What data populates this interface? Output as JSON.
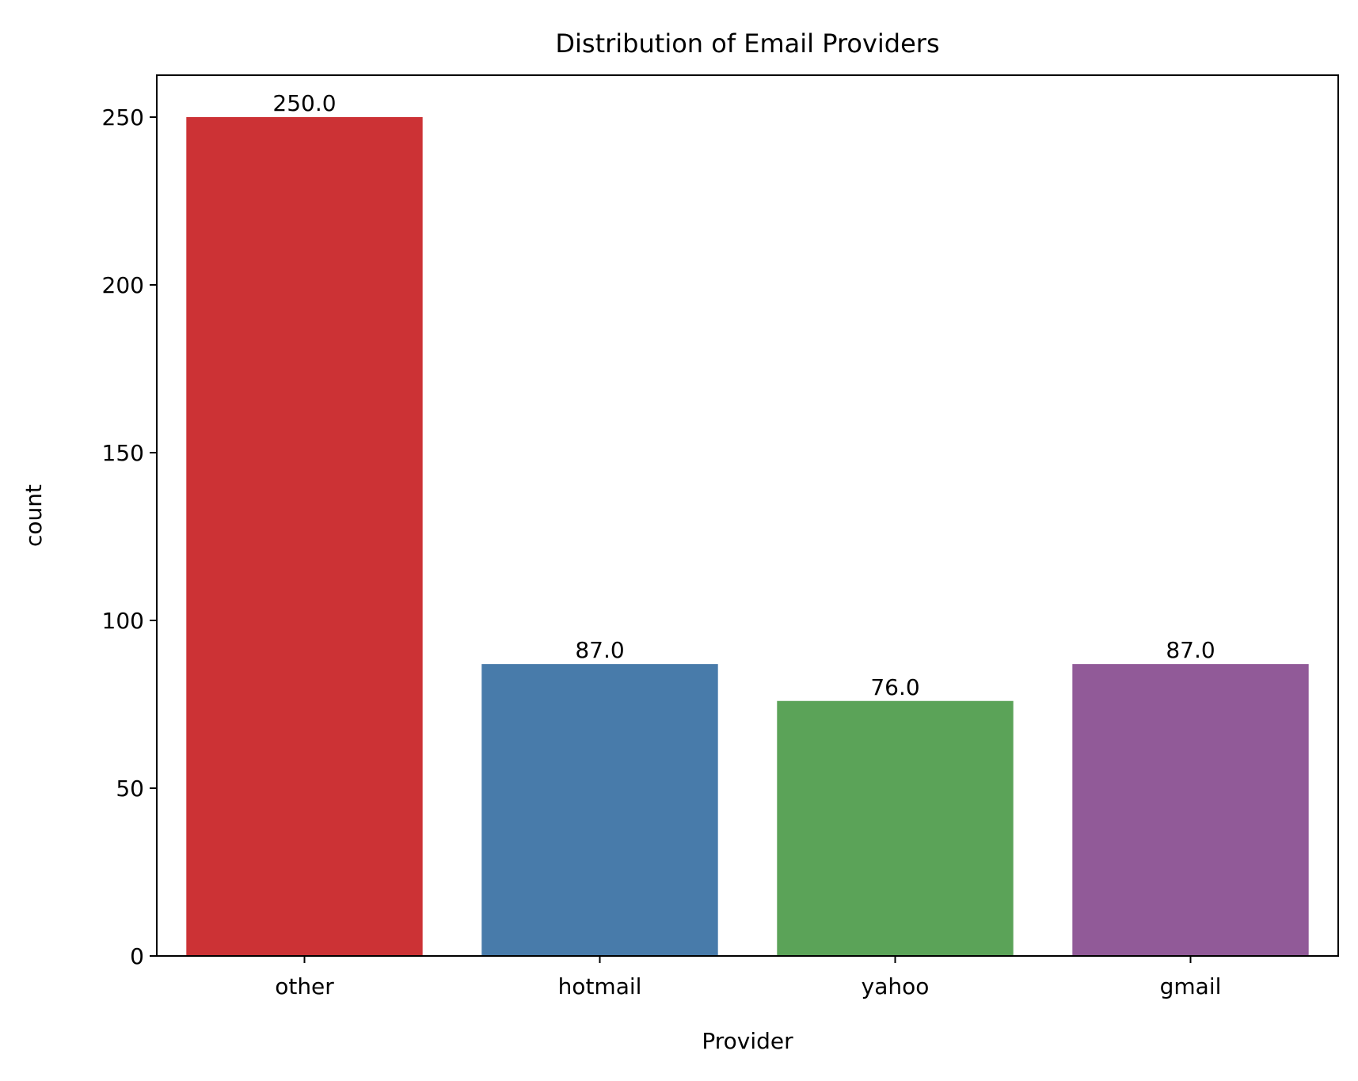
{
  "chart_data": {
    "type": "bar",
    "title": "Distribution of Email Providers",
    "xlabel": "Provider",
    "ylabel": "count",
    "categories": [
      "other",
      "hotmail",
      "yahoo",
      "gmail"
    ],
    "values": [
      250,
      87,
      76,
      87
    ],
    "value_labels": [
      "250.0",
      "87.0",
      "76.0",
      "87.0"
    ],
    "colors": [
      "#cc3235",
      "#487baa",
      "#5ba358",
      "#915a98"
    ],
    "ylim": [
      0,
      262.5
    ],
    "yticks": [
      0,
      50,
      100,
      150,
      200,
      250
    ],
    "ytick_labels": [
      "0",
      "50",
      "100",
      "150",
      "200",
      "250"
    ],
    "grid": false,
    "legend": "none"
  }
}
